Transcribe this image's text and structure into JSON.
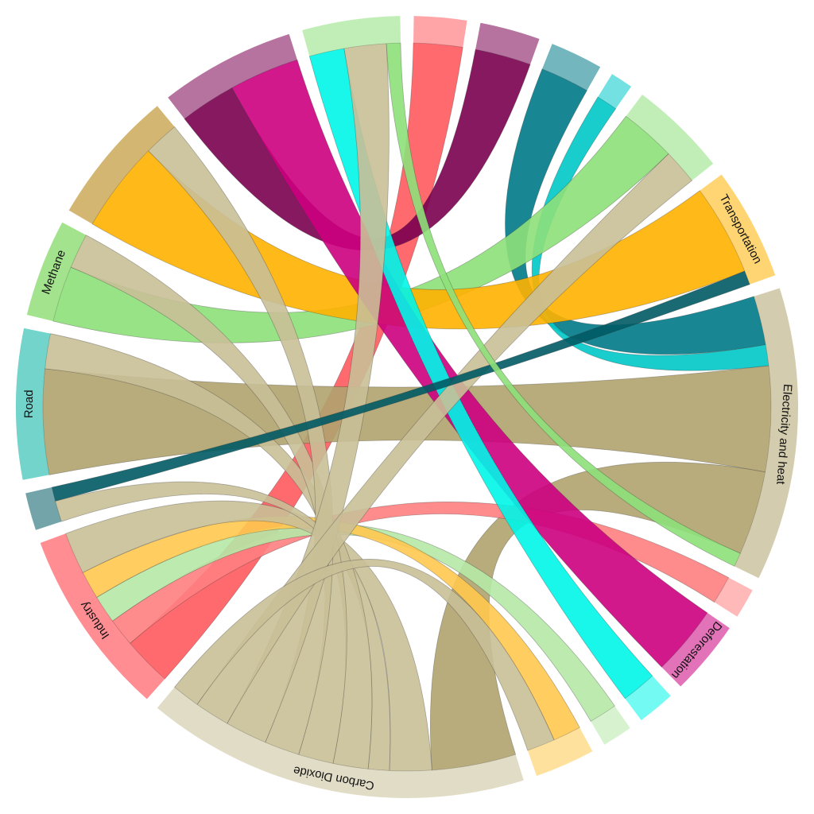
{
  "chart_data": {
    "type": "chord",
    "nodes": [
      {
        "name": null,
        "color": "#ff5a5e"
      },
      {
        "name": null,
        "color": "#7a0050"
      },
      {
        "name": null,
        "color": "#007a87"
      },
      {
        "name": null,
        "color": "#00c8c8"
      },
      {
        "name": null,
        "color": "#8ee07a"
      },
      {
        "name": "Transportation",
        "color": "#ffb100"
      },
      {
        "name": "Electricity and heat",
        "color": "#b0a36e"
      },
      {
        "name": null,
        "color": "#ff8080"
      },
      {
        "name": "Deforestation",
        "color": "#cc0080"
      },
      {
        "name": null,
        "color": "#00f5e8"
      },
      {
        "name": null,
        "color": "#b6e8a6"
      },
      {
        "name": null,
        "color": "#ffc84f"
      },
      {
        "name": "Carbon Dioxide",
        "color": "#c9bf97"
      },
      {
        "name": "Industry",
        "color": "#ff3038"
      },
      {
        "name": null,
        "color": "#005a64"
      },
      {
        "name": "Road",
        "color": "#00b0a0"
      },
      {
        "name": "Methane",
        "color": "#58cc30"
      },
      {
        "name": null,
        "color": "#b07a00"
      },
      {
        "name": null,
        "color": "#7a0050"
      },
      {
        "name": null,
        "color": "#8ee07a"
      }
    ],
    "flows": [
      {
        "source": 0,
        "target": 13,
        "value": 7
      },
      {
        "source": 1,
        "target": 18,
        "value": 8
      },
      {
        "source": 2,
        "target": 6,
        "value": 7
      },
      {
        "source": 3,
        "target": 6,
        "value": 3
      },
      {
        "source": 4,
        "target": 16,
        "value": 8
      },
      {
        "source": 5,
        "target": 17,
        "value": 13
      },
      {
        "source": 6,
        "target": 15,
        "value": 15
      },
      {
        "source": 6,
        "target": 12,
        "value": 12
      },
      {
        "source": 7,
        "target": 13,
        "value": 4
      },
      {
        "source": 8,
        "target": 18,
        "value": 10
      },
      {
        "source": 9,
        "target": 19,
        "value": 5
      },
      {
        "source": 10,
        "target": 13,
        "value": 4
      },
      {
        "source": 11,
        "target": 13,
        "value": 4
      },
      {
        "source": 12,
        "target": 13,
        "value": 6
      },
      {
        "source": 12,
        "target": 14,
        "value": 3
      },
      {
        "source": 12,
        "target": 15,
        "value": 5
      },
      {
        "source": 12,
        "target": 16,
        "value": 5
      },
      {
        "source": 12,
        "target": 17,
        "value": 5
      },
      {
        "source": 12,
        "target": 19,
        "value": 6
      },
      {
        "source": 12,
        "target": 4,
        "value": 5
      },
      {
        "source": 12,
        "target": 11,
        "value": 4
      },
      {
        "source": 14,
        "target": 5,
        "value": 2
      },
      {
        "source": 19,
        "target": 6,
        "value": 2
      }
    ]
  }
}
